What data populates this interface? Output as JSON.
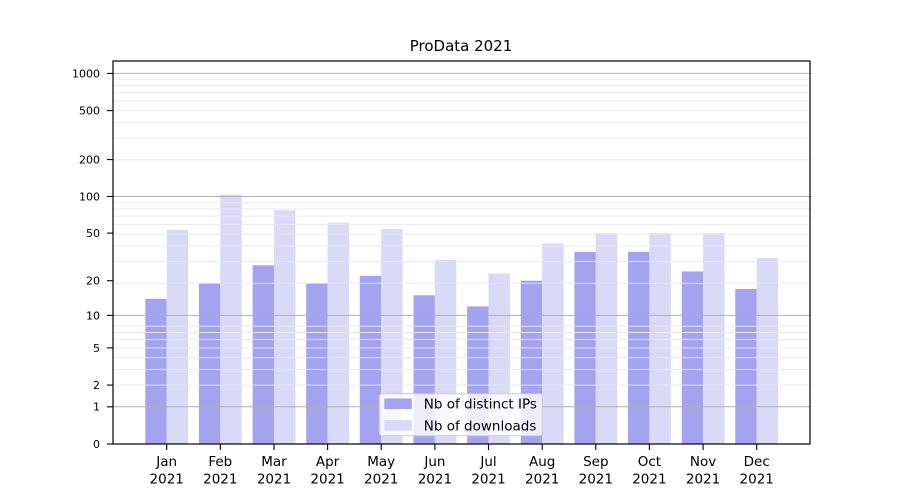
{
  "chart_data": {
    "type": "bar",
    "title": "ProData 2021",
    "categories": [
      "Jan 2021",
      "Feb 2021",
      "Mar 2021",
      "Apr 2021",
      "May 2021",
      "Jun 2021",
      "Jul 2021",
      "Aug 2021",
      "Sep 2021",
      "Oct 2021",
      "Nov 2021",
      "Dec 2021"
    ],
    "x_tick_line1": [
      "Jan",
      "Feb",
      "Mar",
      "Apr",
      "May",
      "Jun",
      "Jul",
      "Aug",
      "Sep",
      "Oct",
      "Nov",
      "Dec"
    ],
    "x_tick_line2": "2021",
    "series": [
      {
        "name": "Nb of distinct IPs",
        "color": "#a3a3f0",
        "values": [
          14,
          19,
          27,
          19,
          22,
          15,
          12,
          20,
          35,
          35,
          24,
          17
        ]
      },
      {
        "name": "Nb of downloads",
        "color": "#d9d9f8",
        "values": [
          53,
          104,
          77,
          61,
          54,
          30,
          23,
          41,
          50,
          50,
          50,
          31
        ]
      }
    ],
    "xlabel": "",
    "ylabel": "",
    "yscale": "symlog (pixel position proportional to log10(1+value))",
    "yticks": [
      1000,
      500,
      200,
      100,
      50,
      20,
      10,
      5,
      2,
      1,
      0
    ],
    "ylim": [
      0,
      1240
    ],
    "grid": {
      "horizontal": true,
      "vertical": false,
      "major_color": "#b0b0b0",
      "minor_color": "#e8e8e8"
    },
    "legend": {
      "position": "lower center inside plot",
      "background": "rgba(255,255,255,0.8)",
      "border_color": "#cccccc"
    }
  },
  "colors": {
    "background": "#ffffff",
    "axis": "#000000",
    "bar_distinct_ips": "#a3a3f0",
    "bar_downloads": "#d9d9f8"
  }
}
